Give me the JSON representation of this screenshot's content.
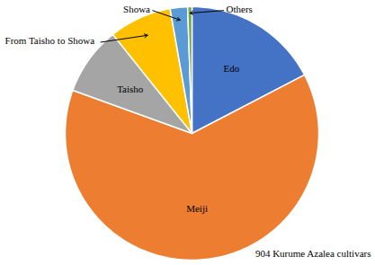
{
  "chart_data": {
    "type": "pie",
    "title": "904 Kurume Azalea cultivars",
    "categories": [
      "Edo",
      "Meiji",
      "Taisho",
      "From Taisho to Showa",
      "Showa",
      "Others"
    ],
    "values": [
      157,
      571,
      79,
      72,
      20,
      5
    ],
    "colors": [
      "#4472c4",
      "#ed7d31",
      "#a5a5a5",
      "#ffc000",
      "#5b9bd5",
      "#70ad47"
    ]
  }
}
